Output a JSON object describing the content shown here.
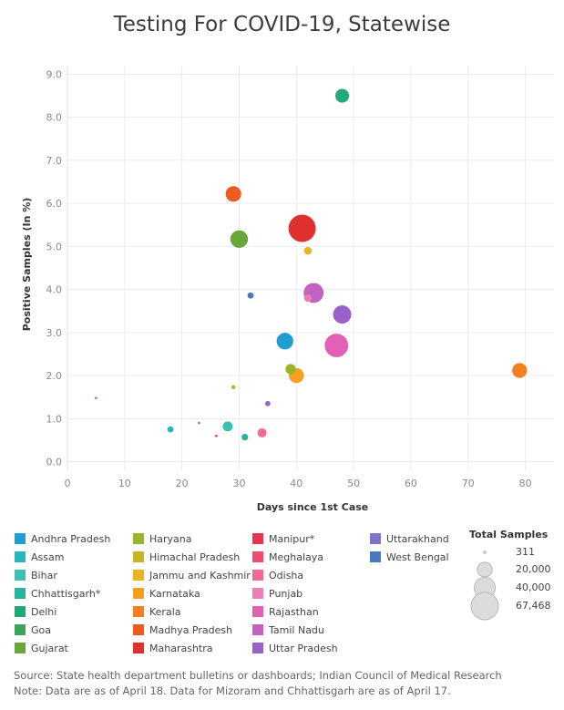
{
  "chart_data": {
    "type": "scatter",
    "title": "Testing For COVID-19, Statewise",
    "xlabel": "Days since 1st Case",
    "ylabel": "Positive Samples (In %)",
    "xlim": [
      0,
      85
    ],
    "ylim": [
      -0.2,
      9.2
    ],
    "xticks": [
      0,
      10,
      20,
      30,
      40,
      50,
      60,
      70,
      80
    ],
    "yticks": [
      0.0,
      1.0,
      2.0,
      3.0,
      4.0,
      5.0,
      6.0,
      7.0,
      8.0,
      9.0
    ],
    "ytick_labels": [
      "0.0",
      "1.0",
      "2.0",
      "3.0",
      "4.0",
      "5.0",
      "6.0",
      "7.0",
      "8.0",
      "9.0"
    ],
    "grid": true,
    "legend_position": "bottom",
    "series": [
      {
        "name": "Andhra Pradesh",
        "color": "#1f9fcf",
        "points": [
          {
            "x": 38,
            "y": 2.8,
            "samples": 25000
          }
        ]
      },
      {
        "name": "Assam",
        "color": "#29b4c2",
        "points": [
          {
            "x": 18,
            "y": 0.75,
            "samples": 3500
          }
        ]
      },
      {
        "name": "Bihar",
        "color": "#3fbfb0",
        "points": [
          {
            "x": 28,
            "y": 0.82,
            "samples": 9000
          }
        ]
      },
      {
        "name": "Chhattisgarh*",
        "color": "#26b59a",
        "points": [
          {
            "x": 31,
            "y": 0.57,
            "samples": 4000
          }
        ]
      },
      {
        "name": "Delhi",
        "color": "#1faa77",
        "points": [
          {
            "x": 48,
            "y": 8.5,
            "samples": 17000
          }
        ]
      },
      {
        "name": "Goa",
        "color": "#3ba55a",
        "points": [
          {
            "x": 23,
            "y": 0.9,
            "samples": 500
          }
        ]
      },
      {
        "name": "Gujarat",
        "color": "#69a838",
        "points": [
          {
            "x": 30,
            "y": 5.17,
            "samples": 28000
          }
        ]
      },
      {
        "name": "Haryana",
        "color": "#9bb52a",
        "points": [
          {
            "x": 39,
            "y": 2.15,
            "samples": 9500
          }
        ]
      },
      {
        "name": "Himachal Pradesh",
        "color": "#c9b523",
        "points": [
          {
            "x": 29,
            "y": 1.73,
            "samples": 1600
          }
        ]
      },
      {
        "name": "Jammu and Kashmir",
        "color": "#ebb520",
        "points": [
          {
            "x": 42,
            "y": 4.9,
            "samples": 5500
          }
        ]
      },
      {
        "name": "Karnataka",
        "color": "#f5a01f",
        "points": [
          {
            "x": 40,
            "y": 2.0,
            "samples": 20000
          }
        ]
      },
      {
        "name": "Kerala",
        "color": "#f5801f",
        "points": [
          {
            "x": 79,
            "y": 2.12,
            "samples": 20000
          }
        ]
      },
      {
        "name": "Madhya Pradesh",
        "color": "#ec5b1f",
        "points": [
          {
            "x": 29,
            "y": 6.22,
            "samples": 22000
          }
        ]
      },
      {
        "name": "Maharashtra",
        "color": "#e03030",
        "points": [
          {
            "x": 41,
            "y": 5.42,
            "samples": 67468
          }
        ]
      },
      {
        "name": "Manipur*",
        "color": "#e8344e",
        "points": [
          {
            "x": 26,
            "y": 0.6,
            "samples": 311
          }
        ]
      },
      {
        "name": "Meghalaya",
        "color": "#ef4a72",
        "points": [
          {
            "x": 5,
            "y": 1.48,
            "samples": 400
          }
        ]
      },
      {
        "name": "Odisha",
        "color": "#f06a92",
        "points": [
          {
            "x": 34,
            "y": 0.67,
            "samples": 7500
          }
        ]
      },
      {
        "name": "Punjab",
        "color": "#ee7fb6",
        "points": [
          {
            "x": 42,
            "y": 3.8,
            "samples": 5000
          }
        ]
      },
      {
        "name": "Rajasthan",
        "color": "#e260b5",
        "points": [
          {
            "x": 47,
            "y": 2.7,
            "samples": 50000
          }
        ]
      },
      {
        "name": "Tamil Nadu",
        "color": "#c462c2",
        "points": [
          {
            "x": 43,
            "y": 3.92,
            "samples": 36000
          }
        ]
      },
      {
        "name": "Uttar Pradesh",
        "color": "#9a62c9",
        "points": [
          {
            "x": 48,
            "y": 3.42,
            "samples": 30000
          },
          {
            "x": 35,
            "y": 1.35,
            "samples": 2500
          }
        ]
      },
      {
        "name": "Uttarakhand",
        "color": "#7c74c8",
        "points": []
      },
      {
        "name": "West Bengal",
        "color": "#4a79c0",
        "points": [
          {
            "x": 32,
            "y": 3.86,
            "samples": 3500
          }
        ]
      }
    ],
    "size_legend": {
      "title": "Total Samples",
      "entries": [
        {
          "label": "311",
          "value": 311
        },
        {
          "label": "20,000",
          "value": 20000
        },
        {
          "label": "40,000",
          "value": 40000
        },
        {
          "label": "67,468",
          "value": 67468
        }
      ]
    }
  },
  "footer": {
    "source": "Source: State health department bulletins or dashboards; Indian Council of Medical Research",
    "note": "Note: Data are as of April 18. Data for Mizoram and Chhattisgarh are as of April 17."
  }
}
